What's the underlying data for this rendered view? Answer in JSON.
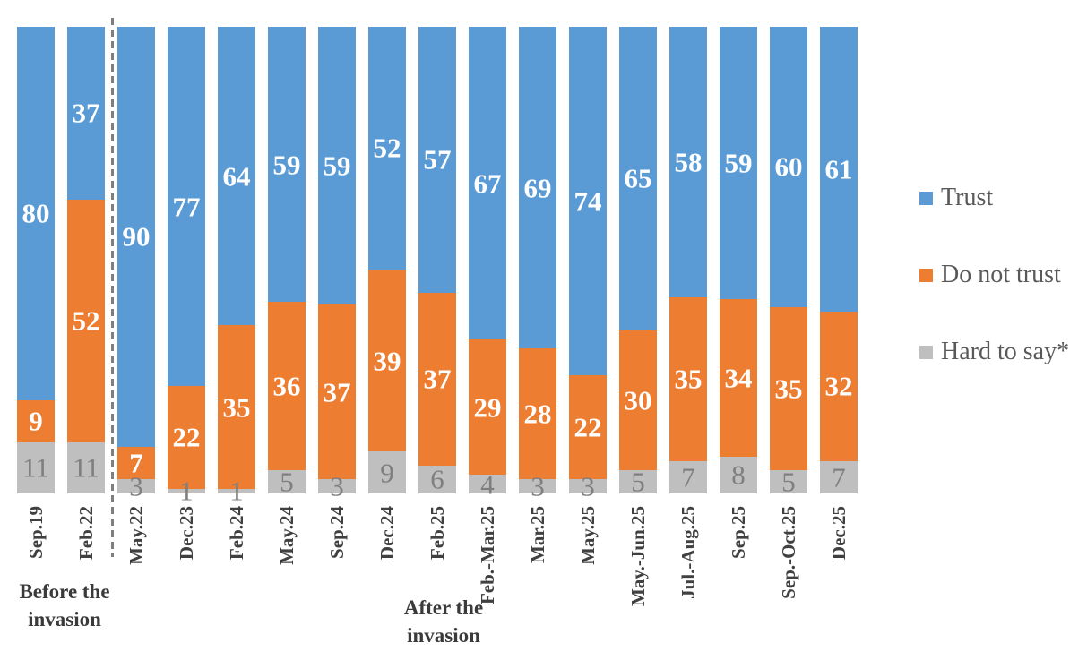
{
  "chart_data": {
    "type": "bar",
    "subtype": "100%-stacked-column",
    "title": "",
    "xlabel": "",
    "ylabel": "",
    "ylim": [
      0,
      100
    ],
    "grid": false,
    "legend_position": "right",
    "categories": [
      "Sep.19",
      "Feb.22",
      "May.22",
      "Dec.23",
      "Feb.24",
      "May.24",
      "Sep.24",
      "Dec.24",
      "Feb.25",
      "Feb.-Mar.25",
      "Mar.25",
      "May.25",
      "May.-Jun.25",
      "Jul.-Aug.25",
      "Sep.25",
      "Sep.-Oct.25",
      "Dec.25"
    ],
    "series": [
      {
        "name": "Trust",
        "color": "#5B9BD5",
        "label_color": "#FFFFFF",
        "label_bold": true,
        "values": [
          80,
          37,
          90,
          77,
          64,
          59,
          59,
          52,
          57,
          67,
          69,
          74,
          65,
          58,
          59,
          60,
          61
        ]
      },
      {
        "name": "Do not trust",
        "color": "#ED7D31",
        "label_color": "#FFFFFF",
        "label_bold": true,
        "values": [
          9,
          52,
          7,
          22,
          35,
          36,
          37,
          39,
          37,
          29,
          28,
          22,
          30,
          35,
          34,
          35,
          32
        ]
      },
      {
        "name": "Hard to say*",
        "color": "#BFBFBF",
        "label_color": "#7F7F7F",
        "label_bold": false,
        "values": [
          11,
          11,
          3,
          1,
          1,
          5,
          3,
          9,
          6,
          4,
          3,
          3,
          5,
          7,
          8,
          5,
          7
        ]
      }
    ],
    "separator": {
      "after_category": "Feb.22",
      "style": "dashed",
      "color": "#7F7F7F"
    },
    "annotations": [
      {
        "id": "before",
        "lines": [
          "Before the",
          "invasion"
        ]
      },
      {
        "id": "after",
        "lines": [
          "After the",
          "invasion"
        ]
      }
    ]
  }
}
